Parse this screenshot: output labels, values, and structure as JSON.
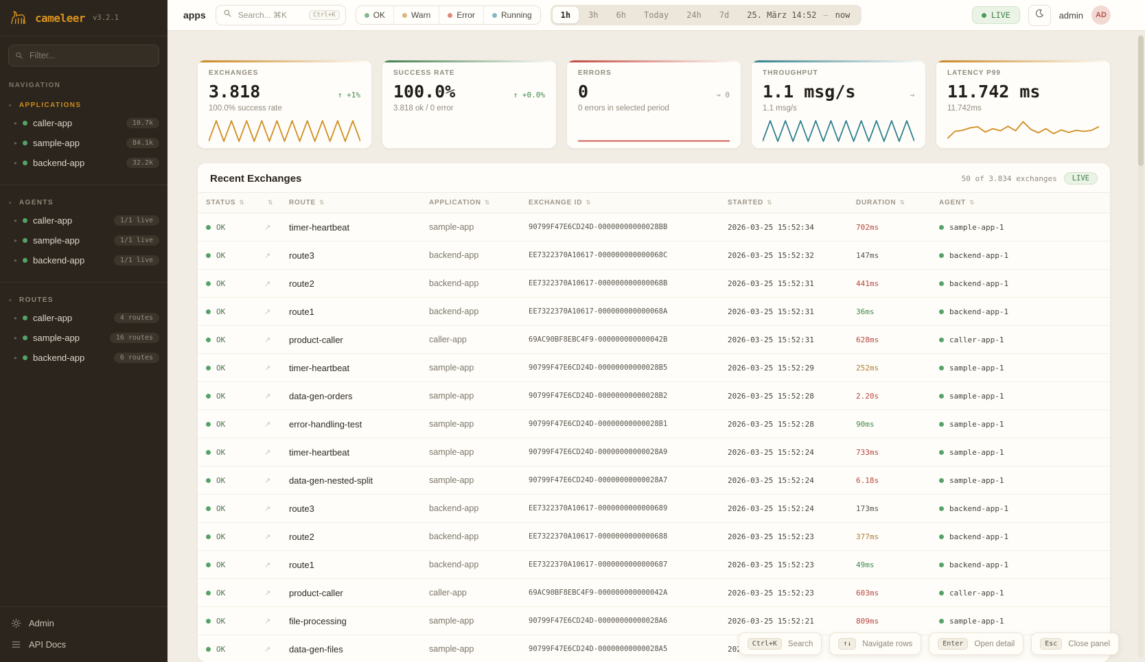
{
  "brand": {
    "name": "cameleer",
    "version": "v3.2.1"
  },
  "sidebar": {
    "filter_placeholder": "Filter...",
    "nav_label": "NAVIGATION",
    "sections": [
      {
        "label": "APPLICATIONS",
        "accent": true,
        "items": [
          {
            "name": "caller-app",
            "badge": "10.7k"
          },
          {
            "name": "sample-app",
            "badge": "84.1k"
          },
          {
            "name": "backend-app",
            "badge": "32.2k"
          }
        ]
      },
      {
        "label": "AGENTS",
        "accent": false,
        "items": [
          {
            "name": "caller-app",
            "badge": "1/1 live"
          },
          {
            "name": "sample-app",
            "badge": "1/1 live"
          },
          {
            "name": "backend-app",
            "badge": "1/1 live"
          }
        ]
      },
      {
        "label": "ROUTES",
        "accent": false,
        "items": [
          {
            "name": "caller-app",
            "badge": "4 routes"
          },
          {
            "name": "sample-app",
            "badge": "16 routes"
          },
          {
            "name": "backend-app",
            "badge": "6 routes"
          }
        ]
      }
    ],
    "footer": [
      {
        "label": "Admin"
      },
      {
        "label": "API Docs"
      }
    ]
  },
  "topbar": {
    "context_label": "apps",
    "search": {
      "placeholder": "Search... ⌘K",
      "shortcut": "Ctrl+K"
    },
    "status_filters": [
      {
        "label": "OK",
        "color": "#85bb8e"
      },
      {
        "label": "Warn",
        "color": "#dcb57c"
      },
      {
        "label": "Error",
        "color": "#e0897e"
      },
      {
        "label": "Running",
        "color": "#82bac6"
      }
    ],
    "time_ranges": [
      "1h",
      "3h",
      "6h",
      "Today",
      "24h",
      "7d"
    ],
    "active_range": "1h",
    "date_start": "25. März 14:52",
    "date_sep": "—",
    "date_end": "now",
    "live_label": "LIVE",
    "user_name": "admin",
    "avatar_initials": "AD"
  },
  "stat_cards": [
    {
      "label": "EXCHANGES",
      "value": "3.818",
      "trend": "↑ +1%",
      "trend_color": "#3f8a4c",
      "subtitle": "100.0% success rate",
      "accent": "#c9851b",
      "spark": {
        "type": "zigzag",
        "color": "#cf8c1e",
        "peaks": 10
      }
    },
    {
      "label": "SUCCESS RATE",
      "value": "100.0%",
      "trend": "↑ +0.0%",
      "trend_color": "#3f8a4c",
      "subtitle": "3.818 ok / 0 error",
      "accent": "#3e7d4c",
      "spark": null
    },
    {
      "label": "ERRORS",
      "value": "0",
      "trend": "→ 0",
      "trend_color": "#9a948a",
      "subtitle": "0 errors in selected period",
      "accent": "#c2463c",
      "spark": {
        "type": "flat",
        "color": "#c74a3e"
      }
    },
    {
      "label": "THROUGHPUT",
      "value": "1.1 msg/s",
      "trend": "→",
      "trend_color": "#9a948a",
      "subtitle": "1.1 msg/s",
      "accent": "#2e7f8c",
      "spark": {
        "type": "zigzag",
        "color": "#2a7f8e",
        "peaks": 10
      }
    },
    {
      "label": "LATENCY P99",
      "value": "11.742 ms",
      "trend": "",
      "trend_color": "#9a948a",
      "subtitle": "11.742ms",
      "accent": "#c9851b",
      "spark": {
        "type": "line",
        "color": "#cf8c1e",
        "points": [
          0.9,
          0.55,
          0.5,
          0.38,
          0.33,
          0.58,
          0.42,
          0.52,
          0.3,
          0.52,
          0.08,
          0.45,
          0.62,
          0.42,
          0.66,
          0.48,
          0.6,
          0.5,
          0.55,
          0.5,
          0.32
        ]
      }
    }
  ],
  "table": {
    "title": "Recent Exchanges",
    "meta": "50 of 3.834 exchanges",
    "live_label": "LIVE",
    "columns": [
      "STATUS",
      "",
      "ROUTE",
      "APPLICATION",
      "EXCHANGE ID",
      "STARTED",
      "DURATION",
      "AGENT"
    ],
    "rows": [
      {
        "status": "OK",
        "route": "timer-heartbeat",
        "app": "sample-app",
        "id": "90799F47E6CD24D-00000000000028BB",
        "started": "2026-03-25 15:52:34",
        "duration": "702ms",
        "dcolor": "red",
        "agent": "sample-app-1"
      },
      {
        "status": "OK",
        "route": "route3",
        "app": "backend-app",
        "id": "EE7322370A10617-000000000000068C",
        "started": "2026-03-25 15:52:32",
        "duration": "147ms",
        "dcolor": "neutral",
        "agent": "backend-app-1"
      },
      {
        "status": "OK",
        "route": "route2",
        "app": "backend-app",
        "id": "EE7322370A10617-000000000000068B",
        "started": "2026-03-25 15:52:31",
        "duration": "441ms",
        "dcolor": "red",
        "agent": "backend-app-1"
      },
      {
        "status": "OK",
        "route": "route1",
        "app": "backend-app",
        "id": "EE7322370A10617-000000000000068A",
        "started": "2026-03-25 15:52:31",
        "duration": "36ms",
        "dcolor": "green",
        "agent": "backend-app-1"
      },
      {
        "status": "OK",
        "route": "product-caller",
        "app": "caller-app",
        "id": "69AC90BF8EBC4F9-000000000000042B",
        "started": "2026-03-25 15:52:31",
        "duration": "628ms",
        "dcolor": "red",
        "agent": "caller-app-1"
      },
      {
        "status": "OK",
        "route": "timer-heartbeat",
        "app": "sample-app",
        "id": "90799F47E6CD24D-00000000000028B5",
        "started": "2026-03-25 15:52:29",
        "duration": "252ms",
        "dcolor": "amber",
        "agent": "sample-app-1"
      },
      {
        "status": "OK",
        "route": "data-gen-orders",
        "app": "sample-app",
        "id": "90799F47E6CD24D-00000000000028B2",
        "started": "2026-03-25 15:52:28",
        "duration": "2.20s",
        "dcolor": "red",
        "agent": "sample-app-1"
      },
      {
        "status": "OK",
        "route": "error-handling-test",
        "app": "sample-app",
        "id": "90799F47E6CD24D-00000000000028B1",
        "started": "2026-03-25 15:52:28",
        "duration": "90ms",
        "dcolor": "green",
        "agent": "sample-app-1"
      },
      {
        "status": "OK",
        "route": "timer-heartbeat",
        "app": "sample-app",
        "id": "90799F47E6CD24D-00000000000028A9",
        "started": "2026-03-25 15:52:24",
        "duration": "733ms",
        "dcolor": "red",
        "agent": "sample-app-1"
      },
      {
        "status": "OK",
        "route": "data-gen-nested-split",
        "app": "sample-app",
        "id": "90799F47E6CD24D-00000000000028A7",
        "started": "2026-03-25 15:52:24",
        "duration": "6.18s",
        "dcolor": "red",
        "agent": "sample-app-1"
      },
      {
        "status": "OK",
        "route": "route3",
        "app": "backend-app",
        "id": "EE7322370A10617-0000000000000689",
        "started": "2026-03-25 15:52:24",
        "duration": "173ms",
        "dcolor": "neutral",
        "agent": "backend-app-1"
      },
      {
        "status": "OK",
        "route": "route2",
        "app": "backend-app",
        "id": "EE7322370A10617-0000000000000688",
        "started": "2026-03-25 15:52:23",
        "duration": "377ms",
        "dcolor": "amber",
        "agent": "backend-app-1"
      },
      {
        "status": "OK",
        "route": "route1",
        "app": "backend-app",
        "id": "EE7322370A10617-0000000000000687",
        "started": "2026-03-25 15:52:23",
        "duration": "49ms",
        "dcolor": "green",
        "agent": "backend-app-1"
      },
      {
        "status": "OK",
        "route": "product-caller",
        "app": "caller-app",
        "id": "69AC90BF8EBC4F9-000000000000042A",
        "started": "2026-03-25 15:52:23",
        "duration": "603ms",
        "dcolor": "red",
        "agent": "caller-app-1"
      },
      {
        "status": "OK",
        "route": "file-processing",
        "app": "sample-app",
        "id": "90799F47E6CD24D-00000000000028A6",
        "started": "2026-03-25 15:52:21",
        "duration": "809ms",
        "dcolor": "red",
        "agent": "sample-app-1"
      },
      {
        "status": "OK",
        "route": "data-gen-files",
        "app": "sample-app",
        "id": "90799F47E6CD24D-00000000000028A5",
        "started": "2026-03-25 15:52:21",
        "duration": "",
        "dcolor": "neutral",
        "agent": "sample-app-1"
      }
    ]
  },
  "hints": [
    {
      "key": "Ctrl+K",
      "label": "Search"
    },
    {
      "key": "↑↓",
      "label": "Navigate rows"
    },
    {
      "key": "Enter",
      "label": "Open detail"
    },
    {
      "key": "Esc",
      "label": "Close panel"
    }
  ],
  "duration_colors": {
    "red": "#b4463e",
    "amber": "#ad7c2f",
    "green": "#3f8a4f",
    "neutral": "#55514a"
  }
}
